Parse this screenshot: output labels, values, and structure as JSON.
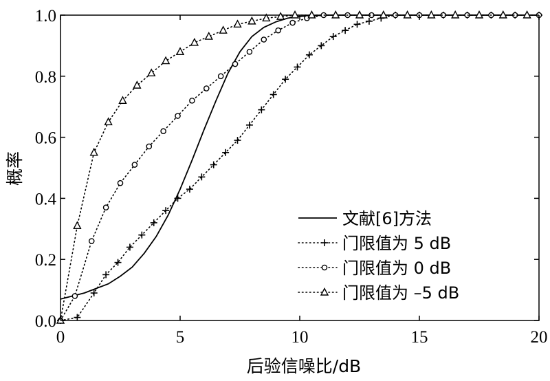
{
  "chart_data": {
    "type": "line",
    "xlabel": "后验信噪比/dB",
    "ylabel": "概率",
    "xlim": [
      0,
      20
    ],
    "ylim": [
      0,
      1.0
    ],
    "xticks": [
      0,
      5,
      10,
      15,
      20
    ],
    "yticks": [
      0.0,
      0.2,
      0.4,
      0.6,
      0.8,
      1.0
    ],
    "xtick_labels": [
      "0",
      "5",
      "10",
      "15",
      "20"
    ],
    "ytick_labels": [
      "0.0",
      "0.2",
      "0.4",
      "0.6",
      "0.8",
      "1.0"
    ],
    "grid": false,
    "legend_position": "bottom-right",
    "series": [
      {
        "name": "文献[6]方法",
        "style": "solid",
        "marker": "none",
        "x": [
          0,
          1,
          2,
          2.5,
          3,
          3.5,
          4,
          4.5,
          5,
          5.5,
          6,
          6.5,
          7,
          7.5,
          8,
          8.5,
          9,
          9.5,
          10,
          11,
          12,
          14,
          16,
          18,
          20
        ],
        "y": [
          0.07,
          0.09,
          0.12,
          0.145,
          0.175,
          0.22,
          0.275,
          0.345,
          0.43,
          0.525,
          0.625,
          0.72,
          0.81,
          0.88,
          0.93,
          0.96,
          0.978,
          0.99,
          0.996,
          1.0,
          1.0,
          1.0,
          1.0,
          1.0,
          1.0
        ]
      },
      {
        "name": "门限值为 5 dB",
        "style": "dotted",
        "marker": "plus",
        "x": [
          0,
          0.7,
          1.4,
          1.9,
          2.4,
          2.9,
          3.4,
          3.9,
          4.4,
          4.9,
          5.4,
          5.9,
          6.4,
          6.9,
          7.4,
          7.9,
          8.4,
          8.9,
          9.4,
          9.9,
          10.4,
          10.9,
          11.4,
          11.9,
          12.4,
          12.9,
          13.4,
          14,
          15,
          16,
          17,
          18,
          19,
          20
        ],
        "y": [
          0.0,
          0.01,
          0.09,
          0.15,
          0.19,
          0.24,
          0.28,
          0.32,
          0.36,
          0.4,
          0.43,
          0.47,
          0.51,
          0.55,
          0.59,
          0.64,
          0.69,
          0.74,
          0.79,
          0.83,
          0.87,
          0.9,
          0.93,
          0.95,
          0.97,
          0.98,
          0.99,
          1.0,
          1.0,
          1.0,
          1.0,
          1.0,
          1.0,
          1.0
        ]
      },
      {
        "name": "门限值为 0 dB",
        "style": "dotted",
        "marker": "circle",
        "x": [
          0,
          0.6,
          1.3,
          1.9,
          2.5,
          3.1,
          3.7,
          4.3,
          4.9,
          5.5,
          6.1,
          6.7,
          7.3,
          7.9,
          8.5,
          9.1,
          9.7,
          10.3,
          11,
          12,
          13,
          14,
          15,
          16,
          17,
          18,
          19,
          20
        ],
        "y": [
          0.0,
          0.08,
          0.26,
          0.37,
          0.45,
          0.51,
          0.57,
          0.62,
          0.67,
          0.72,
          0.76,
          0.8,
          0.84,
          0.88,
          0.92,
          0.95,
          0.975,
          0.99,
          1.0,
          1.0,
          1.0,
          1.0,
          1.0,
          1.0,
          1.0,
          1.0,
          1.0,
          1.0
        ]
      },
      {
        "name": "门限值为 –5 dB",
        "style": "dotted",
        "marker": "triangle",
        "x": [
          0,
          0.7,
          1.4,
          2.0,
          2.6,
          3.2,
          3.8,
          4.4,
          5.0,
          5.6,
          6.2,
          6.8,
          7.4,
          8.0,
          8.6,
          9.2,
          9.8,
          10.5,
          11.5,
          12.5,
          13.5,
          14.5,
          15.5,
          16.5,
          17.5,
          18.5,
          19.5
        ],
        "y": [
          0.0,
          0.31,
          0.55,
          0.65,
          0.72,
          0.77,
          0.81,
          0.85,
          0.88,
          0.91,
          0.93,
          0.95,
          0.97,
          0.98,
          0.99,
          0.995,
          1.0,
          1.0,
          1.0,
          1.0,
          1.0,
          1.0,
          1.0,
          1.0,
          1.0,
          1.0,
          1.0
        ]
      }
    ]
  }
}
